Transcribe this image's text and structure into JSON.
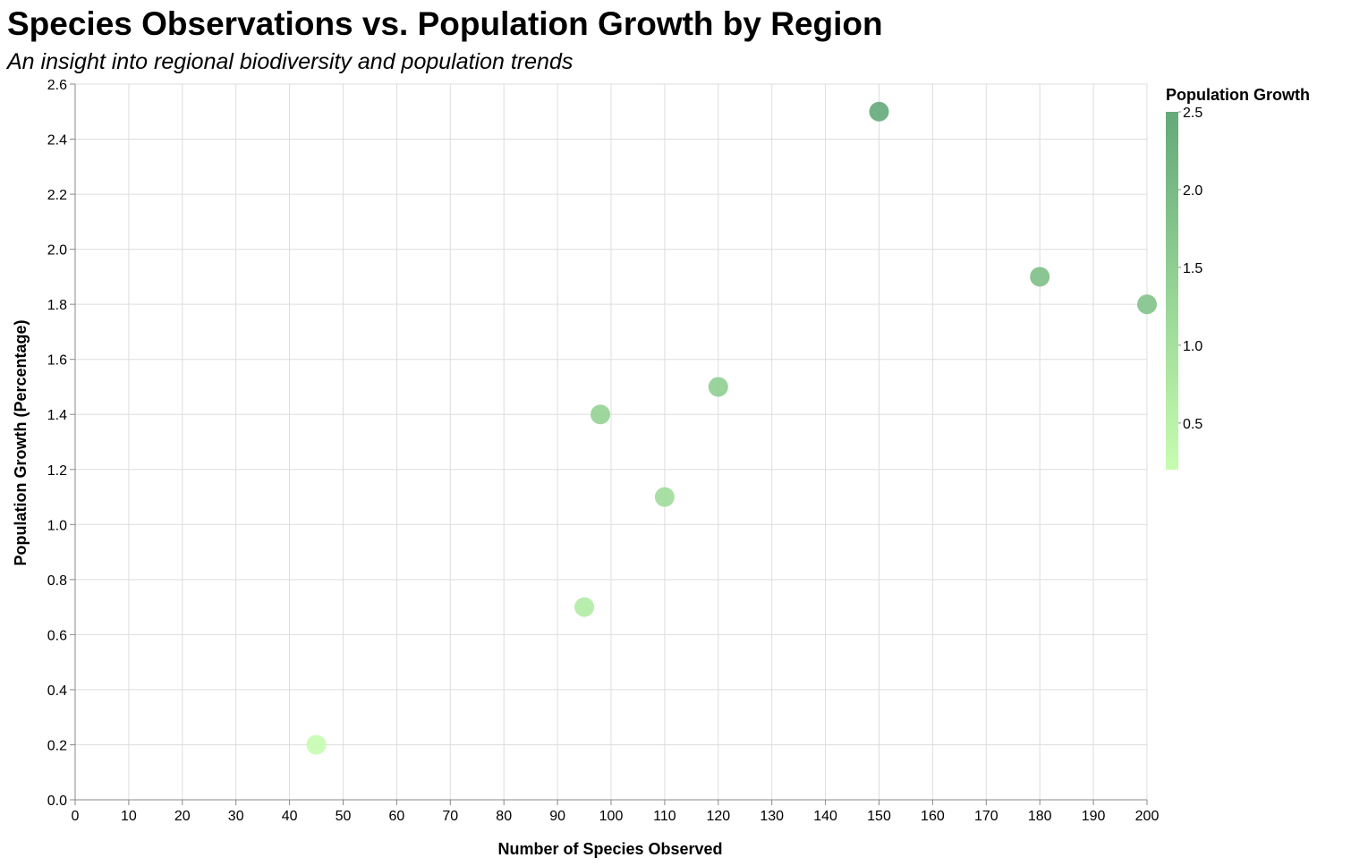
{
  "chart_data": {
    "type": "scatter",
    "title": "Species Observations vs. Population Growth by Region",
    "subtitle": "An insight into regional biodiversity and population trends",
    "xlabel": "Number of Species Observed",
    "ylabel": "Population Growth (Percentage)",
    "xlim": [
      0,
      200
    ],
    "ylim": [
      0,
      2.6
    ],
    "x_ticks": [
      0,
      10,
      20,
      30,
      40,
      50,
      60,
      70,
      80,
      90,
      100,
      110,
      120,
      130,
      140,
      150,
      160,
      170,
      180,
      190,
      200
    ],
    "y_ticks": [
      "0.0",
      "0.2",
      "0.4",
      "0.6",
      "0.8",
      "1.0",
      "1.2",
      "1.4",
      "1.6",
      "1.8",
      "2.0",
      "2.2",
      "2.4",
      "2.6"
    ],
    "grid": true,
    "points": [
      {
        "x": 150,
        "y": 2.5
      },
      {
        "x": 180,
        "y": 1.9
      },
      {
        "x": 200,
        "y": 1.8
      },
      {
        "x": 120,
        "y": 1.5
      },
      {
        "x": 98,
        "y": 1.4
      },
      {
        "x": 110,
        "y": 1.1
      },
      {
        "x": 95,
        "y": 0.7
      },
      {
        "x": 45,
        "y": 0.2
      }
    ],
    "color_legend": {
      "title": "Population Growth",
      "placement": "right",
      "domain": [
        0.2,
        2.5
      ],
      "ticks": [
        "0.5",
        "1.0",
        "1.5",
        "2.0",
        "2.5"
      ],
      "color_low": "#c7fdb0",
      "color_high": "#64a97a"
    }
  }
}
